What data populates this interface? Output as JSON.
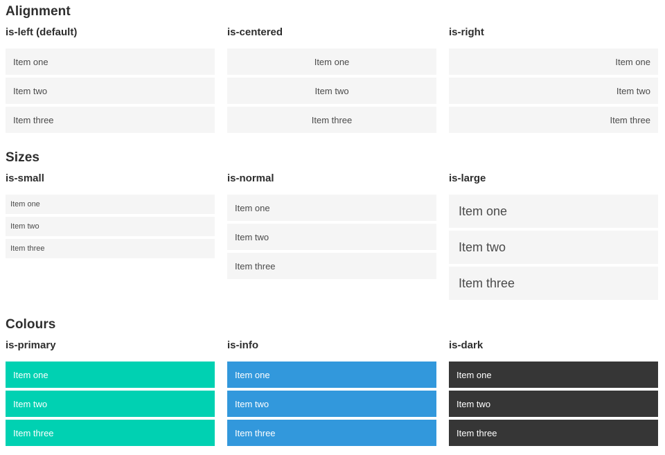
{
  "theme": {
    "page_background": "#ffffff",
    "item_background": "#f5f5f5",
    "item_text": "#4a4a4a",
    "heading_text": "#2e2e2e",
    "colored_item_text": "#ffffff",
    "primary": "#00d1b2",
    "info": "#3298dc",
    "dark": "#363636"
  },
  "sections": [
    {
      "title": "Alignment",
      "columns": [
        {
          "heading": "is-left (default)",
          "items": [
            "Item one",
            "Item two",
            "Item three"
          ]
        },
        {
          "heading": "is-centered",
          "items": [
            "Item one",
            "Item two",
            "Item three"
          ]
        },
        {
          "heading": "is-right",
          "items": [
            "Item one",
            "Item two",
            "Item three"
          ]
        }
      ]
    },
    {
      "title": "Sizes",
      "columns": [
        {
          "heading": "is-small",
          "items": [
            "Item one",
            "Item two",
            "Item three"
          ]
        },
        {
          "heading": "is-normal",
          "items": [
            "Item one",
            "Item two",
            "Item three"
          ]
        },
        {
          "heading": "is-large",
          "items": [
            "Item one",
            "Item two",
            "Item three"
          ]
        }
      ]
    },
    {
      "title": "Colours",
      "columns": [
        {
          "heading": "is-primary",
          "items": [
            "Item one",
            "Item two",
            "Item three"
          ]
        },
        {
          "heading": "is-info",
          "items": [
            "Item one",
            "Item two",
            "Item three"
          ]
        },
        {
          "heading": "is-dark",
          "items": [
            "Item one",
            "Item two",
            "Item three"
          ]
        }
      ]
    }
  ]
}
